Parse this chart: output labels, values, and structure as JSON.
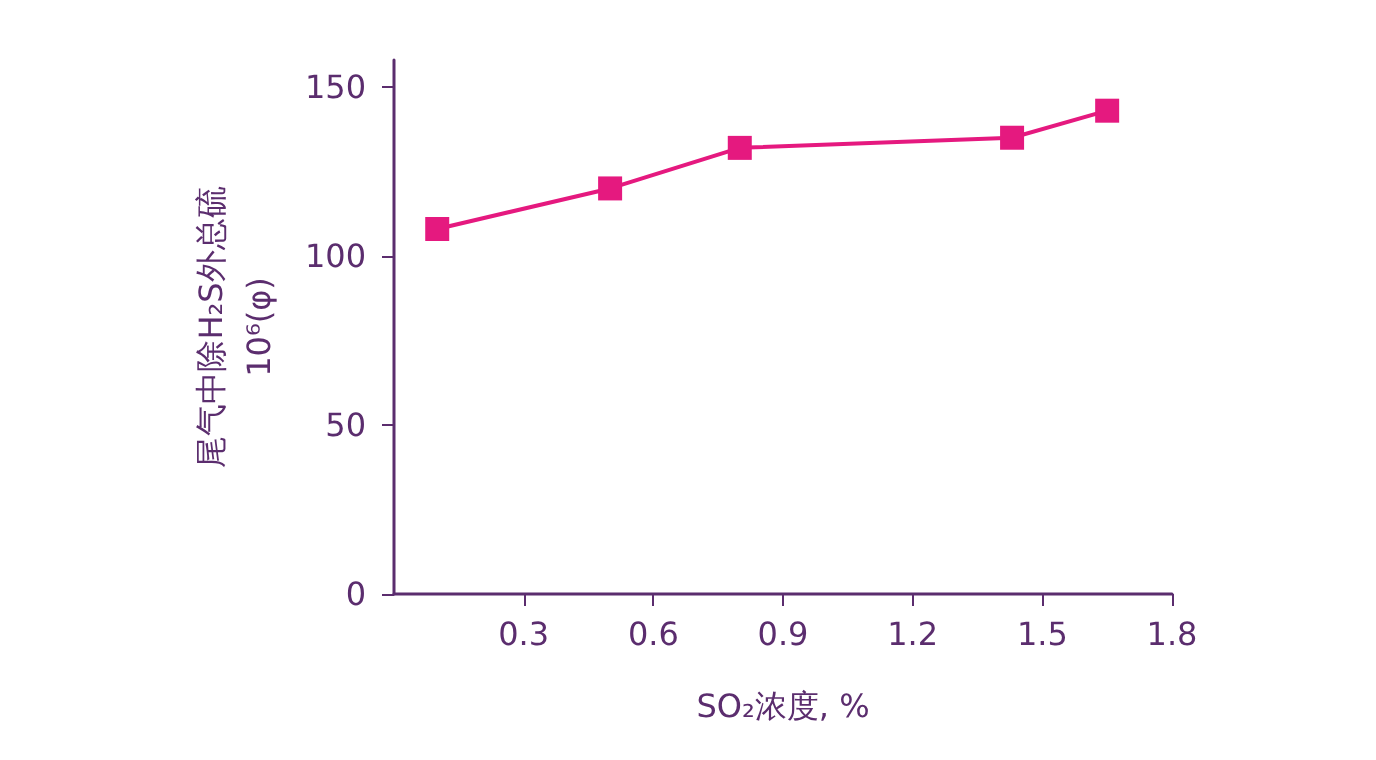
{
  "chart_data": {
    "type": "line",
    "xlabel": "SO₂浓度, %",
    "ylabel": "尾气中除H₂S外总硫\n10⁶(φ)",
    "x": [
      0.1,
      0.5,
      0.8,
      1.43,
      1.65
    ],
    "series": [
      {
        "color": "#e5197f",
        "values": [
          108,
          120,
          132,
          135,
          143
        ]
      }
    ],
    "xlim": [
      0,
      1.8
    ],
    "xticks": [
      0.3,
      0.6,
      0.9,
      1.2,
      1.5,
      1.8
    ],
    "ylim": [
      0,
      158
    ],
    "yticks": [
      0,
      50,
      100,
      150
    ],
    "marker": "square",
    "line_style": "solid",
    "grid": false
  }
}
